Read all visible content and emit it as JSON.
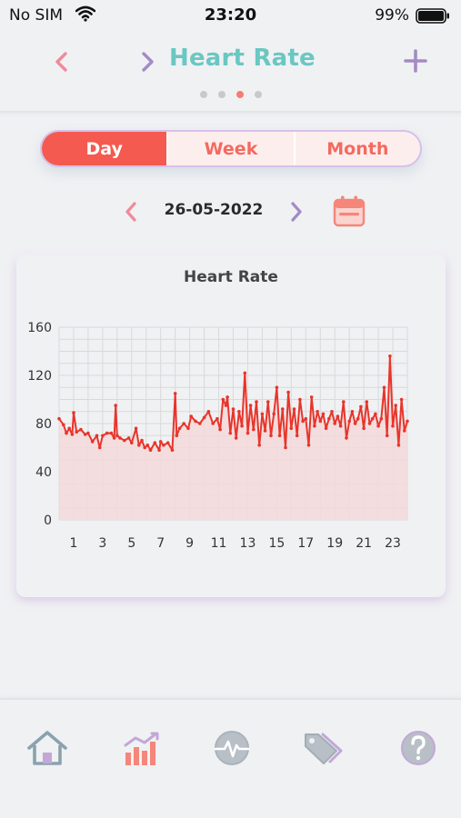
{
  "status_bar": {
    "carrier": "No SIM",
    "time": "23:20",
    "battery": "99%"
  },
  "header": {
    "title": "Heart Rate",
    "page_dots": 4,
    "active_dot": 2
  },
  "segments": [
    {
      "label": "Day",
      "active": true
    },
    {
      "label": "Week",
      "active": false
    },
    {
      "label": "Month",
      "active": false
    }
  ],
  "date": {
    "label": "26-05-2022"
  },
  "colors": {
    "title": "#6ac7c2",
    "accent": "#f45a4f",
    "back_chevron": "#f08a9a",
    "forward_chevron": "#a48bc4",
    "line": "#e8352b",
    "area": "#f3d9d9"
  },
  "icons": {
    "back": "chevron-left-icon",
    "forward": "chevron-right-icon",
    "add": "plus-icon",
    "calendar": "calendar-icon",
    "tabs": [
      "home-icon",
      "bar-chart-icon",
      "heartbeat-icon",
      "tags-icon",
      "help-icon"
    ]
  },
  "tabs": [
    {
      "name": "home",
      "active": false
    },
    {
      "name": "stats",
      "active": true
    },
    {
      "name": "heartbeat",
      "active": false
    },
    {
      "name": "tags",
      "active": false
    },
    {
      "name": "help",
      "active": false
    }
  ],
  "chart_data": {
    "type": "area",
    "title": "Heart Rate",
    "xlabel": "",
    "ylabel": "",
    "xlim": [
      0,
      24
    ],
    "ylim": [
      0,
      160
    ],
    "y_ticks": [
      0,
      40,
      80,
      120,
      160
    ],
    "x_ticks": [
      1,
      3,
      5,
      7,
      9,
      11,
      13,
      15,
      17,
      19,
      21,
      23
    ],
    "grid": true,
    "series": [
      {
        "x": [
          0,
          0.3,
          0.5,
          0.7,
          0.9,
          1.0,
          1.2,
          1.5,
          1.8,
          2.0,
          2.3,
          2.6,
          2.8,
          3.0,
          3.3,
          3.6,
          3.8,
          3.9,
          4.0,
          4.2,
          4.5,
          4.8,
          5.0,
          5.3,
          5.5,
          5.7,
          5.9,
          6.1,
          6.3,
          6.6,
          6.9,
          7.0,
          7.2,
          7.5,
          7.8,
          8.0,
          8.1,
          8.3,
          8.6,
          8.9,
          9.1,
          9.4,
          9.7,
          10.0,
          10.3,
          10.6,
          10.9,
          11.1,
          11.3,
          11.5,
          11.6,
          11.8,
          12.0,
          12.2,
          12.4,
          12.6,
          12.8,
          13.0,
          13.2,
          13.4,
          13.6,
          13.8,
          14.0,
          14.2,
          14.4,
          14.6,
          14.8,
          15.0,
          15.2,
          15.4,
          15.6,
          15.8,
          16.0,
          16.2,
          16.4,
          16.6,
          16.8,
          17.0,
          17.2,
          17.4,
          17.6,
          17.8,
          18.0,
          18.2,
          18.4,
          18.6,
          18.8,
          19.0,
          19.2,
          19.4,
          19.6,
          19.8,
          20.0,
          20.2,
          20.4,
          20.6,
          20.8,
          21.0,
          21.2,
          21.4,
          21.6,
          21.8,
          22.0,
          22.2,
          22.4,
          22.6,
          22.8,
          23.0,
          23.2,
          23.4,
          23.6,
          23.8,
          24.0
        ],
        "y": [
          84,
          79,
          72,
          76,
          71,
          89,
          73,
          75,
          71,
          72,
          65,
          70,
          60,
          70,
          72,
          72,
          68,
          95,
          70,
          68,
          66,
          68,
          64,
          76,
          62,
          66,
          60,
          62,
          58,
          64,
          58,
          65,
          62,
          64,
          58,
          105,
          70,
          76,
          80,
          76,
          86,
          82,
          80,
          85,
          90,
          80,
          84,
          75,
          100,
          95,
          102,
          72,
          92,
          68,
          90,
          78,
          122,
          72,
          95,
          75,
          98,
          62,
          88,
          74,
          98,
          70,
          88,
          110,
          70,
          92,
          60,
          106,
          76,
          92,
          70,
          100,
          82,
          84,
          62,
          102,
          78,
          90,
          82,
          88,
          76,
          84,
          90,
          80,
          86,
          78,
          98,
          68,
          82,
          90,
          80,
          84,
          94,
          76,
          98,
          80,
          84,
          88,
          78,
          84,
          110,
          70,
          136,
          78,
          95,
          62,
          100,
          74,
          82
        ]
      }
    ]
  }
}
